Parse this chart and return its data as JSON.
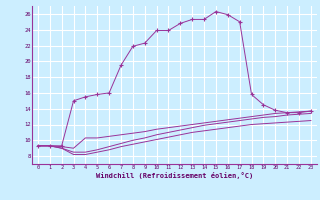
{
  "xlabel": "Windchill (Refroidissement éolien,°C)",
  "bg_color": "#cceeff",
  "line_color": "#993399",
  "grid_color": "#ffffff",
  "xlim": [
    -0.5,
    23.5
  ],
  "ylim": [
    7,
    27
  ],
  "yticks": [
    8,
    10,
    12,
    14,
    16,
    18,
    20,
    22,
    24,
    26
  ],
  "xticks": [
    0,
    1,
    2,
    3,
    4,
    5,
    6,
    7,
    8,
    9,
    10,
    11,
    12,
    13,
    14,
    15,
    16,
    17,
    18,
    19,
    20,
    21,
    22,
    23
  ],
  "series1_x": [
    0,
    1,
    2,
    3,
    4,
    5,
    6,
    7,
    8,
    9,
    10,
    11,
    12,
    13,
    14,
    15,
    16,
    17,
    18,
    19,
    20,
    21,
    22,
    23
  ],
  "series1_y": [
    9.3,
    9.3,
    9.3,
    15.0,
    15.5,
    15.8,
    16.0,
    19.5,
    21.9,
    22.3,
    23.9,
    23.9,
    24.8,
    25.3,
    25.3,
    26.3,
    25.9,
    25.0,
    15.8,
    14.5,
    13.8,
    13.5,
    13.5,
    13.7
  ],
  "series2_x": [
    0,
    1,
    2,
    3,
    4,
    5,
    6,
    7,
    8,
    9,
    10,
    11,
    12,
    13,
    14,
    15,
    16,
    17,
    18,
    19,
    20,
    21,
    22,
    23
  ],
  "series2_y": [
    9.3,
    9.3,
    9.2,
    9.0,
    10.3,
    10.3,
    10.5,
    10.7,
    10.9,
    11.1,
    11.4,
    11.6,
    11.8,
    12.0,
    12.2,
    12.4,
    12.6,
    12.8,
    13.0,
    13.2,
    13.4,
    13.5,
    13.6,
    13.7
  ],
  "series3_x": [
    0,
    1,
    2,
    3,
    4,
    5,
    6,
    7,
    8,
    9,
    10,
    11,
    12,
    13,
    14,
    15,
    16,
    17,
    18,
    19,
    20,
    21,
    22,
    23
  ],
  "series3_y": [
    9.3,
    9.3,
    9.0,
    8.5,
    8.5,
    8.8,
    9.2,
    9.6,
    10.0,
    10.3,
    10.7,
    11.0,
    11.3,
    11.6,
    11.9,
    12.1,
    12.3,
    12.5,
    12.7,
    12.9,
    13.0,
    13.2,
    13.3,
    13.4
  ],
  "series4_x": [
    0,
    1,
    2,
    3,
    4,
    5,
    6,
    7,
    8,
    9,
    10,
    11,
    12,
    13,
    14,
    15,
    16,
    17,
    18,
    19,
    20,
    21,
    22,
    23
  ],
  "series4_y": [
    9.3,
    9.3,
    9.0,
    8.2,
    8.2,
    8.5,
    8.8,
    9.2,
    9.5,
    9.8,
    10.1,
    10.4,
    10.7,
    11.0,
    11.2,
    11.4,
    11.6,
    11.8,
    12.0,
    12.1,
    12.2,
    12.3,
    12.4,
    12.5
  ]
}
